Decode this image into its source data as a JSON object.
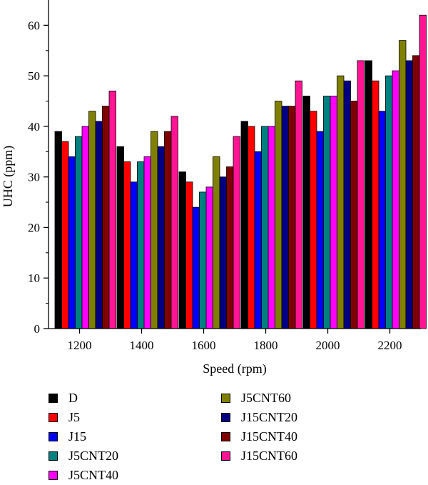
{
  "chart_data": {
    "type": "bar",
    "title": "",
    "xlabel": "Speed (rpm)",
    "ylabel": "UHC (ppm)",
    "ylim": [
      0,
      65
    ],
    "yticks": [
      "0",
      "10",
      "20",
      "30",
      "40",
      "50",
      "60"
    ],
    "categories": [
      "1200",
      "1400",
      "1600",
      "1800",
      "2000",
      "2200"
    ],
    "legend_position": "bottom",
    "series": [
      {
        "name": "D",
        "color": "#000000",
        "values": [
          39,
          36,
          31,
          41,
          46,
          53
        ]
      },
      {
        "name": "J5",
        "color": "#ff0000",
        "values": [
          37,
          33,
          29,
          40,
          43,
          49
        ]
      },
      {
        "name": "J15",
        "color": "#0000ff",
        "values": [
          34,
          29,
          24,
          35,
          39,
          43
        ]
      },
      {
        "name": "J5CNT20",
        "color": "#008080",
        "values": [
          38,
          33,
          27,
          40,
          46,
          50
        ]
      },
      {
        "name": "J5CNT40",
        "color": "#ff00ff",
        "values": [
          40,
          34,
          28,
          40,
          46,
          51
        ]
      },
      {
        "name": "J5CNT60",
        "color": "#808000",
        "values": [
          43,
          39,
          34,
          45,
          50,
          57
        ]
      },
      {
        "name": "J15CNT20",
        "color": "#000080",
        "values": [
          41,
          36,
          30,
          44,
          49,
          53
        ]
      },
      {
        "name": "J15CNT40",
        "color": "#800000",
        "values": [
          44,
          39,
          32,
          44,
          45,
          54
        ]
      },
      {
        "name": "J15CNT60",
        "color": "#ff1493",
        "values": [
          47,
          42,
          38,
          49,
          53,
          62
        ]
      }
    ]
  }
}
